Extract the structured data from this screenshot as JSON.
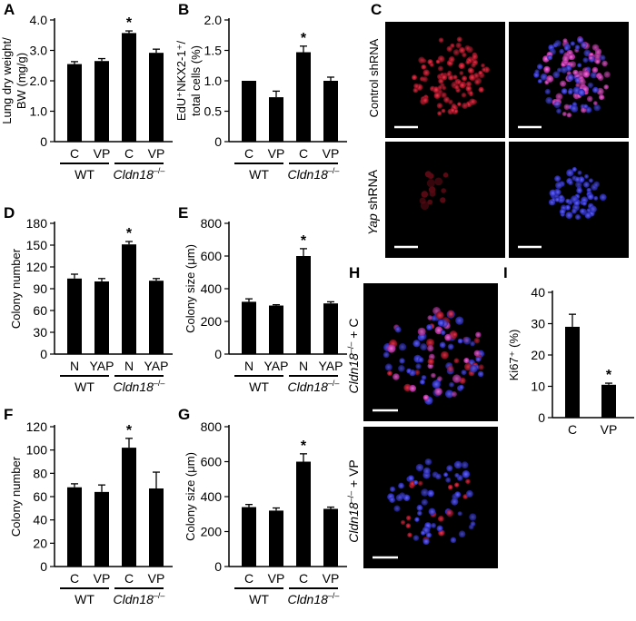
{
  "figure": {
    "panel_letters": [
      "A",
      "B",
      "C",
      "D",
      "E",
      "F",
      "G",
      "H",
      "I"
    ],
    "wt_label": "WT",
    "ko_label": "Cldn18",
    "ko_sup": "–/–",
    "sig_marker": "*",
    "colors": {
      "bar": "#000000",
      "background": "#ffffff",
      "red_stain": "#e0243c",
      "blue_stain": "#3b3cf5",
      "magenta": "#e040c0"
    },
    "micro_c": {
      "row1_label": "Control shRNA",
      "row2_label_italic": "Yap",
      "row2_label_rest": " shRNA"
    },
    "micro_h": {
      "top_label_ital": "Cldn18",
      "top_label_sup": "–/–",
      "top_label_rest": " + C",
      "bottom_label_ital": "Cldn18",
      "bottom_label_sup": "–/–",
      "bottom_label_rest": " + VP"
    }
  },
  "chart_data": [
    {
      "panel": "A",
      "type": "bar",
      "categories": [
        "C",
        "VP",
        "C",
        "VP"
      ],
      "groups": [
        "WT",
        "Cldn18–/–"
      ],
      "values": [
        2.55,
        2.65,
        3.57,
        2.92
      ],
      "errors": [
        0.08,
        0.08,
        0.07,
        0.12
      ],
      "significant": [
        false,
        false,
        true,
        false
      ],
      "ylabel_line1": "Lung dry weight/",
      "ylabel_line2": "BW (mg/g)",
      "ylim": [
        0,
        4.0
      ],
      "yticks": [
        "0",
        "1.0",
        "2.0",
        "3.0",
        "4.0"
      ],
      "ytick_values": [
        0,
        1,
        2,
        3,
        4
      ]
    },
    {
      "panel": "B",
      "type": "bar",
      "categories": [
        "C",
        "VP",
        "C",
        "VP"
      ],
      "groups": [
        "WT",
        "Cldn18–/–"
      ],
      "values": [
        1.0,
        0.73,
        1.47,
        1.0
      ],
      "errors": [
        0.0,
        0.1,
        0.1,
        0.06
      ],
      "significant": [
        false,
        false,
        true,
        false
      ],
      "ylabel_line1": "EdU⁺NKX2-1⁺/",
      "ylabel_line2": "total cells (%)",
      "ylim": [
        0,
        2.0
      ],
      "yticks": [
        "0",
        "0.5",
        "1.0",
        "1.5",
        "2.0"
      ],
      "ytick_values": [
        0,
        0.5,
        1,
        1.5,
        2
      ]
    },
    {
      "panel": "D",
      "type": "bar",
      "categories": [
        "N",
        "YAP",
        "N",
        "YAP"
      ],
      "groups": [
        "WT",
        "Cldn18–/–"
      ],
      "values": [
        104,
        100,
        151,
        101
      ],
      "errors": [
        6,
        4,
        4,
        3
      ],
      "significant": [
        false,
        false,
        true,
        false
      ],
      "ylabel_line1": "Colony  number",
      "ylabel_line2": "",
      "ylim": [
        0,
        180
      ],
      "yticks": [
        "0",
        "30",
        "60",
        "90",
        "120",
        "150",
        "180"
      ],
      "ytick_values": [
        0,
        30,
        60,
        90,
        120,
        150,
        180
      ]
    },
    {
      "panel": "E",
      "type": "bar",
      "categories": [
        "N",
        "YAP",
        "N",
        "YAP"
      ],
      "groups": [
        "WT",
        "Cldn18–/–"
      ],
      "values": [
        320,
        297,
        600,
        310
      ],
      "errors": [
        18,
        5,
        45,
        10
      ],
      "significant": [
        false,
        false,
        true,
        false
      ],
      "ylabel_line1": "Colony size (μm)",
      "ylabel_line2": "",
      "ylim": [
        0,
        800
      ],
      "yticks": [
        "0",
        "200",
        "400",
        "600",
        "800"
      ],
      "ytick_values": [
        0,
        200,
        400,
        600,
        800
      ]
    },
    {
      "panel": "F",
      "type": "bar",
      "categories": [
        "C",
        "VP",
        "C",
        "VP"
      ],
      "groups": [
        "WT",
        "Cldn18–/–"
      ],
      "values": [
        68,
        64,
        102,
        67
      ],
      "errors": [
        3,
        6,
        8,
        14
      ],
      "significant": [
        false,
        false,
        true,
        false
      ],
      "ylabel_line1": "Colony  number",
      "ylabel_line2": "",
      "ylim": [
        0,
        120
      ],
      "yticks": [
        "0",
        "20",
        "40",
        "60",
        "80",
        "100",
        "120"
      ],
      "ytick_values": [
        0,
        20,
        40,
        60,
        80,
        100,
        120
      ]
    },
    {
      "panel": "G",
      "type": "bar",
      "categories": [
        "C",
        "VP",
        "C",
        "VP"
      ],
      "groups": [
        "WT",
        "Cldn18–/–"
      ],
      "values": [
        340,
        320,
        600,
        330
      ],
      "errors": [
        15,
        15,
        45,
        10
      ],
      "significant": [
        false,
        false,
        true,
        false
      ],
      "ylabel_line1": "Colony size (μm)",
      "ylabel_line2": "",
      "ylim": [
        0,
        800
      ],
      "yticks": [
        "0",
        "200",
        "400",
        "600",
        "800"
      ],
      "ytick_values": [
        0,
        200,
        400,
        600,
        800
      ]
    },
    {
      "panel": "I",
      "type": "bar",
      "categories": [
        "C",
        "VP"
      ],
      "groups": [],
      "values": [
        29,
        10.5
      ],
      "errors": [
        4,
        0.5
      ],
      "significant": [
        false,
        true
      ],
      "ylabel_line1": "Ki67⁺ (%)",
      "ylabel_line2": "",
      "ylim": [
        0,
        40
      ],
      "yticks": [
        "0",
        "10",
        "20",
        "30",
        "40"
      ],
      "ytick_values": [
        0,
        10,
        20,
        30,
        40
      ]
    }
  ]
}
